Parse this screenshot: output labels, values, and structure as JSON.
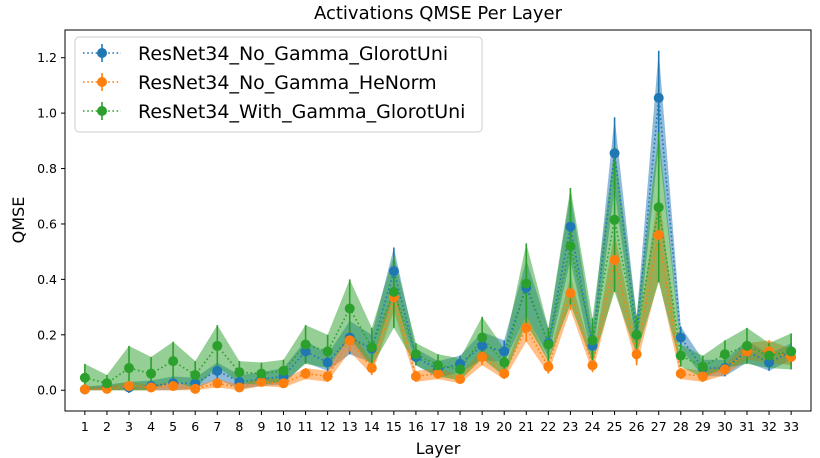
{
  "chart_data": {
    "type": "line",
    "title": "Activations QMSE Per Layer",
    "xlabel": "Layer",
    "ylabel": "QMSE",
    "ylim": [
      -0.075,
      1.3
    ],
    "yticks": [
      0.0,
      0.2,
      0.4,
      0.6,
      0.8,
      1.0,
      1.2
    ],
    "ytick_labels": [
      "0.0",
      "0.2",
      "0.4",
      "0.6",
      "0.8",
      "1.0",
      "1.2"
    ],
    "x": [
      1,
      2,
      3,
      4,
      5,
      6,
      7,
      8,
      9,
      10,
      11,
      12,
      13,
      14,
      15,
      16,
      17,
      18,
      19,
      20,
      21,
      22,
      23,
      24,
      25,
      26,
      27,
      28,
      29,
      30,
      31,
      32,
      33
    ],
    "xtick_labels": [
      "1",
      "2",
      "3",
      "4",
      "5",
      "6",
      "7",
      "8",
      "9",
      "10",
      "11",
      "12",
      "13",
      "14",
      "15",
      "16",
      "17",
      "18",
      "19",
      "20",
      "21",
      "22",
      "23",
      "24",
      "25",
      "26",
      "27",
      "28",
      "29",
      "30",
      "31",
      "32",
      "33"
    ],
    "grid": false,
    "legend_position": "top-left",
    "series": [
      {
        "name": "ResNet34_No_Gamma_GlorotUni",
        "color": "#1f77b4",
        "values": [
          0.003,
          0.01,
          0.01,
          0.015,
          0.025,
          0.025,
          0.07,
          0.03,
          0.04,
          0.05,
          0.14,
          0.1,
          0.19,
          0.15,
          0.43,
          0.12,
          0.075,
          0.095,
          0.16,
          0.14,
          0.37,
          0.17,
          0.59,
          0.16,
          0.855,
          0.2,
          1.055,
          0.19,
          0.08,
          0.08,
          0.14,
          0.1,
          0.14
        ],
        "errors": [
          0.01,
          0.01,
          0.02,
          0.02,
          0.025,
          0.02,
          0.03,
          0.025,
          0.025,
          0.03,
          0.04,
          0.03,
          0.06,
          0.05,
          0.085,
          0.03,
          0.03,
          0.03,
          0.05,
          0.04,
          0.1,
          0.05,
          0.12,
          0.05,
          0.13,
          0.06,
          0.17,
          0.04,
          0.03,
          0.03,
          0.04,
          0.03,
          0.03
        ]
      },
      {
        "name": "ResNet34_No_Gamma_HeNorm",
        "color": "#ff7f0e",
        "values": [
          0.003,
          0.005,
          0.015,
          0.01,
          0.015,
          0.005,
          0.025,
          0.01,
          0.03,
          0.025,
          0.06,
          0.05,
          0.18,
          0.08,
          0.335,
          0.05,
          0.06,
          0.04,
          0.12,
          0.06,
          0.225,
          0.085,
          0.35,
          0.09,
          0.47,
          0.13,
          0.56,
          0.06,
          0.05,
          0.075,
          0.14,
          0.14,
          0.12
        ],
        "errors": [
          0.01,
          0.01,
          0.015,
          0.01,
          0.015,
          0.01,
          0.015,
          0.01,
          0.015,
          0.015,
          0.02,
          0.02,
          0.04,
          0.025,
          0.05,
          0.02,
          0.02,
          0.015,
          0.03,
          0.02,
          0.05,
          0.025,
          0.06,
          0.025,
          0.1,
          0.04,
          0.16,
          0.02,
          0.02,
          0.02,
          0.03,
          0.04,
          0.03
        ]
      },
      {
        "name": "ResNet34_With_Gamma_GlorotUni",
        "color": "#2ca02c",
        "values": [
          0.045,
          0.025,
          0.08,
          0.06,
          0.105,
          0.055,
          0.16,
          0.065,
          0.06,
          0.07,
          0.165,
          0.14,
          0.295,
          0.155,
          0.355,
          0.13,
          0.09,
          0.075,
          0.19,
          0.1,
          0.385,
          0.165,
          0.52,
          0.18,
          0.615,
          0.2,
          0.66,
          0.125,
          0.085,
          0.13,
          0.16,
          0.125,
          0.14
        ],
        "errors": [
          0.05,
          0.03,
          0.08,
          0.06,
          0.07,
          0.05,
          0.075,
          0.04,
          0.04,
          0.04,
          0.07,
          0.06,
          0.105,
          0.07,
          0.13,
          0.04,
          0.04,
          0.04,
          0.075,
          0.05,
          0.145,
          0.06,
          0.21,
          0.08,
          0.26,
          0.07,
          0.27,
          0.04,
          0.04,
          0.05,
          0.065,
          0.045,
          0.065
        ]
      }
    ]
  }
}
